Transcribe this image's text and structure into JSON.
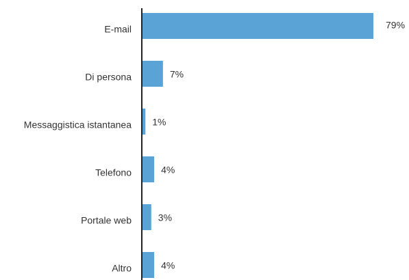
{
  "chart_data": {
    "type": "bar",
    "orientation": "horizontal",
    "categories": [
      "E-mail",
      "Di persona",
      "Messaggistica istantanea",
      "Telefono",
      "Portale web",
      "Altro"
    ],
    "values": [
      79,
      7,
      1,
      4,
      3,
      4
    ],
    "value_labels": [
      "79%",
      "7%",
      "1%",
      "4%",
      "3%",
      "4%"
    ],
    "color": "#5aa3d6"
  }
}
